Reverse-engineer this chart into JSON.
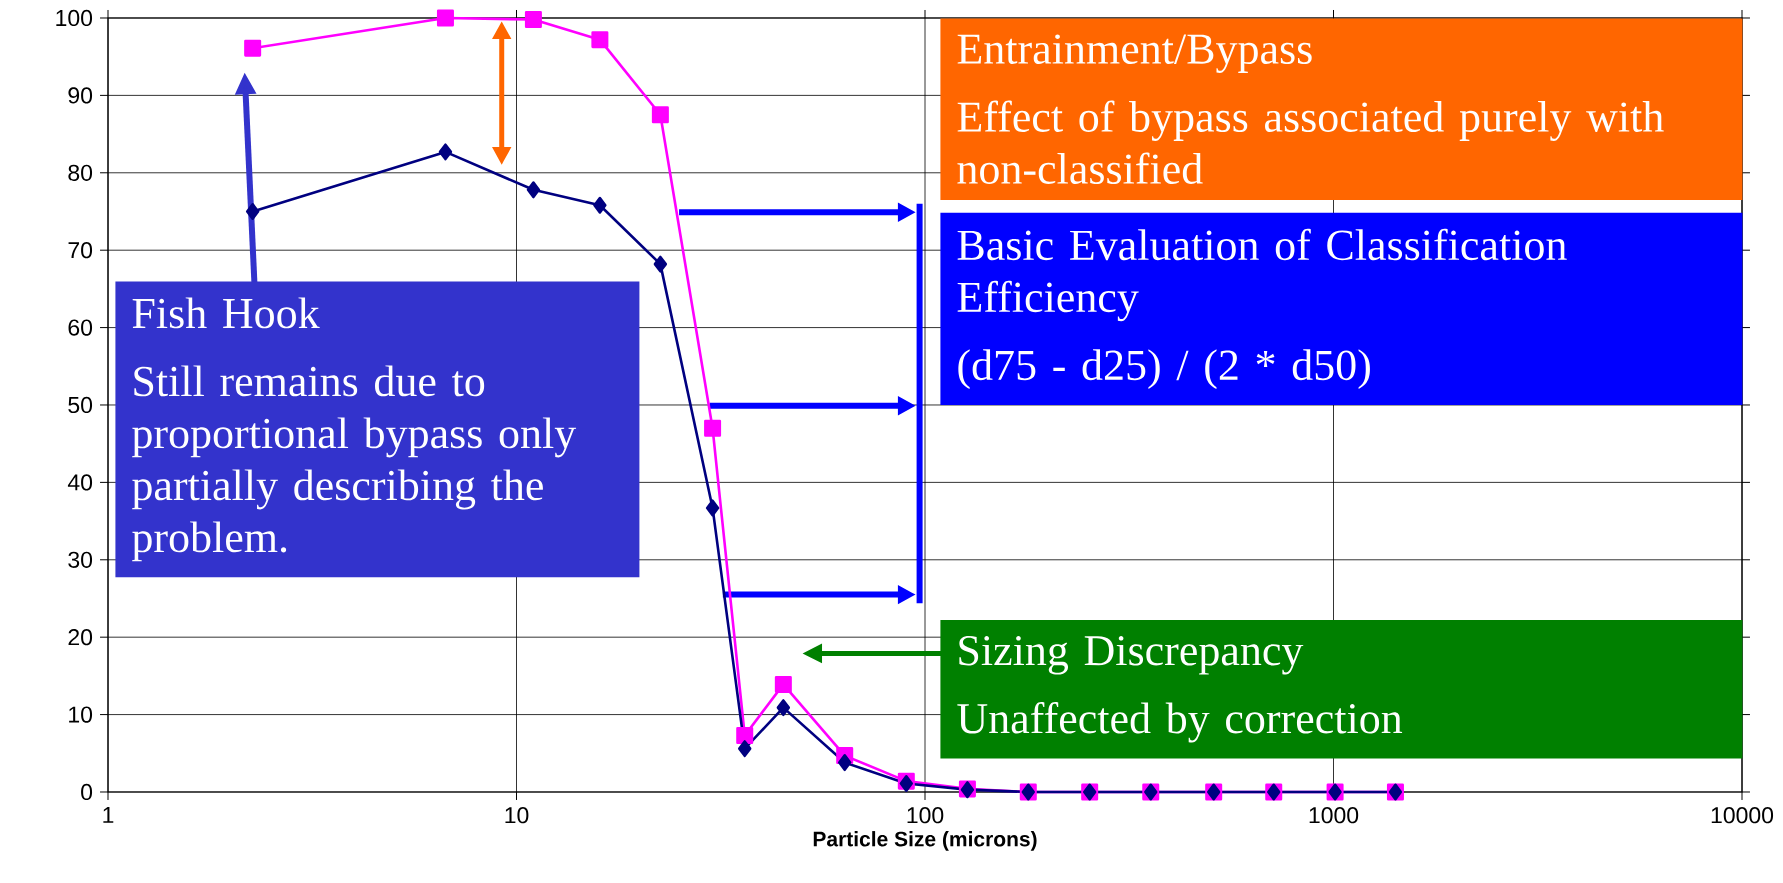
{
  "chart_data": {
    "type": "line",
    "xlabel": "Particle Size (microns)",
    "log": "x",
    "grid": true,
    "x": [
      2.26,
      6.7,
      11,
      16,
      22.5,
      30.2,
      36.2,
      45,
      63.6,
      90,
      127,
      179,
      253,
      357,
      509,
      714,
      1009,
      1418
    ],
    "xlim": [
      1,
      10000
    ],
    "xticks": [
      1,
      10,
      100,
      1000,
      10000
    ],
    "ylim": [
      0,
      100
    ],
    "yticks": [
      0,
      10,
      20,
      30,
      40,
      50,
      60,
      70,
      80,
      90,
      100
    ],
    "series": [
      {
        "color": "#ff00ff",
        "marker": "square",
        "values": [
          96.1,
          100,
          99.8,
          97.2,
          87.5,
          47,
          7.3,
          13.9,
          4.7,
          1.4,
          0.4,
          0,
          0,
          0,
          0,
          0,
          0,
          0
        ]
      },
      {
        "color": "#000080",
        "marker": "diamond",
        "values": [
          75,
          82.7,
          77.8,
          75.8,
          68.2,
          36.7,
          5.6,
          10.9,
          3.8,
          1.1,
          0.3,
          0,
          0,
          0,
          0,
          0,
          0,
          0
        ]
      }
    ],
    "annotations": [
      "Entrainment/Bypass",
      "Effect of bypass associated purely with non-classified",
      "Basic Evaluation of Classification Efficiency",
      "(d75 - d25) / (2 * d50)",
      "Sizing Discrepancy",
      "Unaffected by correction",
      "Fish Hook",
      "Still remains due to proportional bypass only partially describing the problem."
    ]
  }
}
